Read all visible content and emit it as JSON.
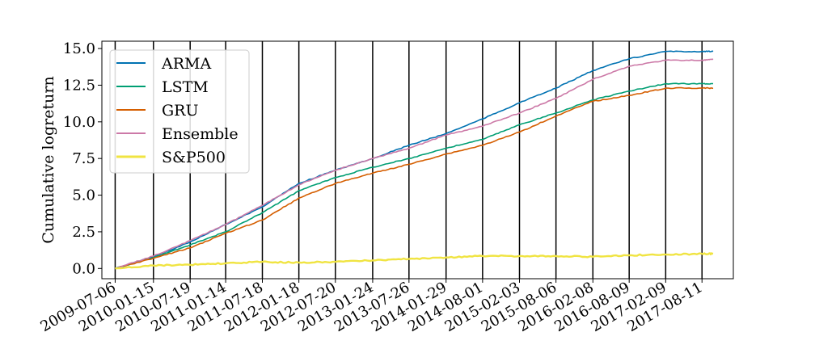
{
  "chart_data": {
    "type": "line",
    "title": "",
    "xlabel": "",
    "ylabel": "Cumulative logreturn",
    "ylim": [
      -0.7,
      15.5
    ],
    "yticks": [
      0.0,
      2.5,
      5.0,
      7.5,
      10.0,
      12.5,
      15.0
    ],
    "ytick_labels": [
      "0.0",
      "2.5",
      "5.0",
      "7.5",
      "10.0",
      "12.5",
      "15.0"
    ],
    "xlim": [
      "2009-04-30",
      "2018-01-16"
    ],
    "xticks": [
      "2009-07-06",
      "2010-01-15",
      "2010-07-19",
      "2011-01-14",
      "2011-07-18",
      "2012-01-18",
      "2012-07-20",
      "2013-01-24",
      "2013-07-26",
      "2014-01-29",
      "2014-08-01",
      "2015-02-03",
      "2015-08-06",
      "2016-02-08",
      "2016-08-09",
      "2017-02-09",
      "2017-08-11"
    ],
    "vertical_lines_at_xticks": true,
    "grid": false,
    "legend_position": "upper-left",
    "series": [
      {
        "name": "ARMA",
        "color": "#0072b2",
        "x": [
          "2009-07-06",
          "2010-01-15",
          "2010-07-19",
          "2011-01-14",
          "2011-07-18",
          "2012-01-18",
          "2012-07-20",
          "2013-01-24",
          "2013-07-26",
          "2014-01-29",
          "2014-08-01",
          "2015-02-03",
          "2015-08-06",
          "2016-02-08",
          "2016-08-09",
          "2017-02-09",
          "2017-08-11",
          "2017-10-06"
        ],
        "values": [
          0.0,
          0.8,
          1.8,
          3.0,
          4.2,
          5.8,
          6.7,
          7.5,
          8.4,
          9.2,
          10.2,
          11.3,
          12.3,
          13.5,
          14.3,
          14.8,
          14.8,
          14.8
        ]
      },
      {
        "name": "LSTM",
        "color": "#009e73",
        "x": [
          "2009-07-06",
          "2010-01-15",
          "2010-07-19",
          "2011-01-14",
          "2011-07-18",
          "2012-01-18",
          "2012-07-20",
          "2013-01-24",
          "2013-07-26",
          "2014-01-29",
          "2014-08-01",
          "2015-02-03",
          "2015-08-06",
          "2016-02-08",
          "2016-08-09",
          "2017-02-09",
          "2017-08-11",
          "2017-10-06"
        ],
        "values": [
          0.0,
          0.75,
          1.6,
          2.5,
          3.8,
          5.3,
          6.2,
          6.9,
          7.5,
          8.2,
          8.8,
          9.8,
          10.6,
          11.5,
          12.1,
          12.6,
          12.6,
          12.6
        ]
      },
      {
        "name": "GRU",
        "color": "#d55e00",
        "x": [
          "2009-07-06",
          "2010-01-15",
          "2010-07-19",
          "2011-01-14",
          "2011-07-18",
          "2012-01-18",
          "2012-07-20",
          "2013-01-24",
          "2013-07-26",
          "2014-01-29",
          "2014-08-01",
          "2015-02-03",
          "2015-08-06",
          "2016-02-08",
          "2016-08-09",
          "2017-02-09",
          "2017-08-11",
          "2017-10-06"
        ],
        "values": [
          0.0,
          0.7,
          1.4,
          2.4,
          3.3,
          4.8,
          5.8,
          6.5,
          7.1,
          7.8,
          8.4,
          9.3,
          10.4,
          11.4,
          11.8,
          12.3,
          12.3,
          12.3
        ]
      },
      {
        "name": "Ensemble",
        "color": "#cc79a7",
        "x": [
          "2009-07-06",
          "2010-01-15",
          "2010-07-19",
          "2011-01-14",
          "2011-07-18",
          "2012-01-18",
          "2012-07-20",
          "2013-01-24",
          "2013-07-26",
          "2014-01-29",
          "2014-08-01",
          "2015-02-03",
          "2015-08-06",
          "2016-02-08",
          "2016-08-09",
          "2017-02-09",
          "2017-08-11",
          "2017-10-06"
        ],
        "values": [
          0.0,
          0.85,
          1.9,
          3.0,
          4.3,
          5.7,
          6.7,
          7.5,
          8.2,
          9.1,
          9.7,
          10.6,
          11.6,
          12.9,
          13.8,
          14.2,
          14.2,
          14.25
        ]
      },
      {
        "name": "S&P500",
        "color": "#f0e442",
        "x": [
          "2009-07-06",
          "2010-01-15",
          "2010-07-19",
          "2011-01-14",
          "2011-07-18",
          "2012-01-18",
          "2012-07-20",
          "2013-01-24",
          "2013-07-26",
          "2014-01-29",
          "2014-08-01",
          "2015-02-03",
          "2015-08-06",
          "2016-02-08",
          "2016-08-09",
          "2017-02-09",
          "2017-08-11",
          "2017-10-06"
        ],
        "values": [
          0.0,
          0.2,
          0.25,
          0.35,
          0.45,
          0.4,
          0.45,
          0.55,
          0.65,
          0.75,
          0.85,
          0.85,
          0.85,
          0.8,
          0.9,
          0.95,
          1.0,
          1.0
        ]
      }
    ]
  }
}
